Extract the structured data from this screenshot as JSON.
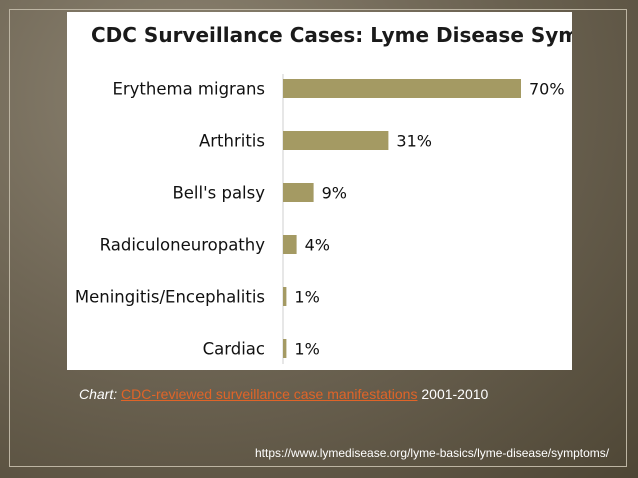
{
  "chart_data": {
    "type": "bar",
    "orientation": "horizontal",
    "title": "CDC Surveillance Cases: Lyme Disease Symptoms",
    "categories": [
      "Erythema migrans",
      "Arthritis",
      "Bell's palsy",
      "Radiculoneuropathy",
      "Meningitis/Encephalitis",
      "Cardiac"
    ],
    "values": [
      70,
      31,
      9,
      4,
      1,
      1
    ],
    "data_labels": [
      "70%",
      "31%",
      "9%",
      "4%",
      "1%",
      "1%"
    ],
    "xlim": [
      0,
      70
    ],
    "grid": false,
    "bar_color": "#a49a63"
  },
  "caption": {
    "lead": "Chart:",
    "link_text": "CDC-reviewed surveillance case manifestations",
    "tail": "2001-2010"
  },
  "source_url": "https://www.lymedisease.org/lyme-basics/lyme-disease/symptoms/"
}
